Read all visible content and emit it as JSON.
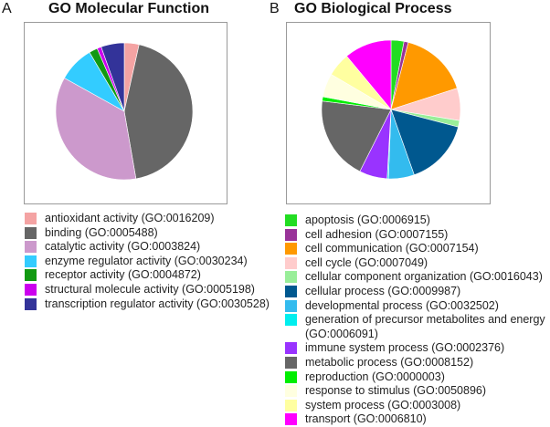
{
  "panels": {
    "a": {
      "letter": "A",
      "title": "GO Molecular Function"
    },
    "b": {
      "letter": "B",
      "title": "GO Biological Process"
    }
  },
  "chart_data": [
    {
      "type": "pie",
      "title": "GO Molecular Function",
      "legend_position": "bottom",
      "categories": [
        "antioxidant activity (GO:0016209)",
        "binding (GO:0005488)",
        "catalytic activity (GO:0003824)",
        "enzyme regulator activity (GO:0030234)",
        "receptor activity (GO:0004872)",
        "structural molecule activity (GO:0005198)",
        "transcription regulator activity (GO:0030528)"
      ],
      "values": [
        3.5,
        44,
        36,
        8.5,
        2,
        1,
        5.5
      ],
      "colors": [
        "#f4a3a3",
        "#666666",
        "#cc99cc",
        "#33ccff",
        "#119911",
        "#cc00ee",
        "#333399"
      ]
    },
    {
      "type": "pie",
      "title": "GO Biological Process",
      "legend_position": "bottom",
      "categories": [
        "apoptosis (GO:0006915)",
        "cell adhesion (GO:0007155)",
        "cell communication (GO:0007154)",
        "cell cycle (GO:0007049)",
        "cellular component organization (GO:0016043)",
        "cellular process (GO:0009987)",
        "developmental process (GO:0032502)",
        "generation of precursor metabolites and energy (GO:0006091)",
        "immune system process (GO:0002376)",
        "metabolic process (GO:0008152)",
        "reproduction (GO:0000003)",
        "response to stimulus (GO:0050896)",
        "system process (GO:0003008)",
        "transport (GO:0006810)"
      ],
      "values": [
        3,
        1,
        16,
        7.5,
        1.5,
        15.5,
        6,
        0.3,
        6.5,
        19.5,
        1,
        5.5,
        5.5,
        11
      ],
      "colors": [
        "#22dd22",
        "#993399",
        "#ff9900",
        "#ffcccc",
        "#99ee99",
        "#00588f",
        "#33bbee",
        "#00eeee",
        "#9933ff",
        "#666666",
        "#00ee00",
        "#ffffe0",
        "#ffffa0",
        "#ff00ff"
      ]
    }
  ]
}
